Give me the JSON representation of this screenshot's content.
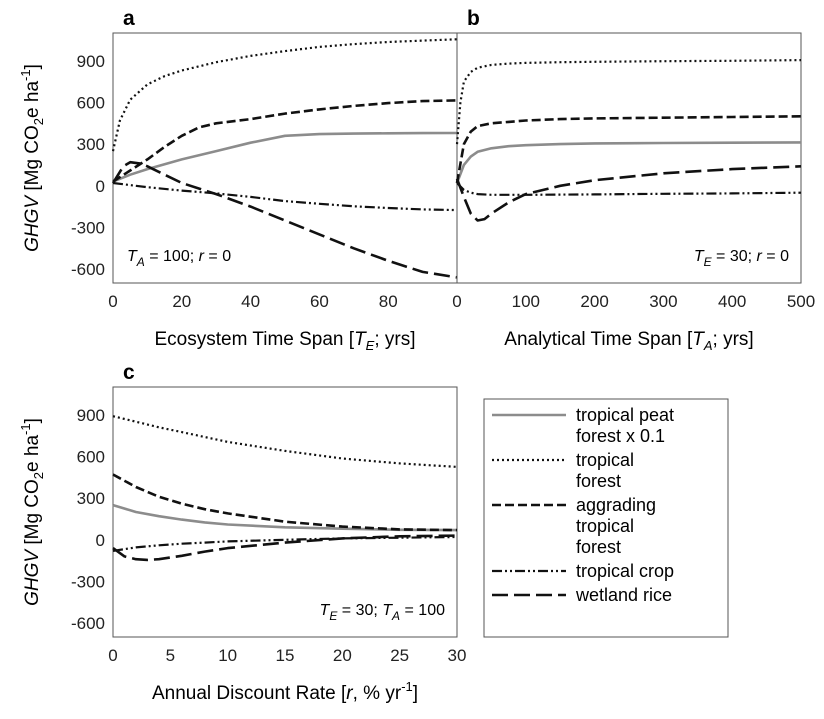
{
  "chart_data": [
    {
      "id": "a",
      "type": "line",
      "panel_label": "a",
      "xlabel": {
        "before": "Ecosystem Time Span [",
        "sym": "T",
        "sub": "E",
        "after": "; yrs]"
      },
      "ylabel": {
        "sym": "GHGV",
        "pre": " [Mg CO",
        "sub": "2",
        "post": "e ha",
        "sup": "-1",
        "end": "]"
      },
      "xlim": [
        0,
        100
      ],
      "ylim": [
        -700,
        1100
      ],
      "xticks": [
        0,
        20,
        40,
        60,
        80
      ],
      "yticks": [
        -600,
        -300,
        0,
        300,
        600,
        900
      ],
      "annotation": {
        "t1": "T",
        "s1": "A",
        "m1": " = 100; ",
        "t2": "r",
        "m2": " = 0"
      },
      "annotation_pos": "bottom-left",
      "series": [
        {
          "key": "peat",
          "x": [
            0,
            5,
            10,
            20,
            30,
            40,
            50,
            60,
            70,
            80,
            90,
            100
          ],
          "y": [
            30,
            80,
            120,
            190,
            250,
            310,
            360,
            372,
            376,
            378,
            379,
            380
          ]
        },
        {
          "key": "forest",
          "x": [
            0,
            2,
            5,
            10,
            15,
            20,
            30,
            40,
            50,
            60,
            70,
            80,
            90,
            100
          ],
          "y": [
            250,
            470,
            620,
            730,
            790,
            830,
            890,
            935,
            970,
            1000,
            1020,
            1035,
            1045,
            1055
          ]
        },
        {
          "key": "aggrading",
          "x": [
            0,
            5,
            10,
            15,
            20,
            25,
            30,
            40,
            50,
            60,
            70,
            80,
            90,
            100
          ],
          "y": [
            30,
            110,
            190,
            280,
            360,
            420,
            450,
            480,
            520,
            550,
            575,
            595,
            610,
            615
          ]
        },
        {
          "key": "crop",
          "x": [
            0,
            10,
            20,
            30,
            40,
            50,
            60,
            70,
            80,
            90,
            100
          ],
          "y": [
            20,
            -10,
            -35,
            -55,
            -80,
            -110,
            -130,
            -148,
            -160,
            -170,
            -175
          ]
        },
        {
          "key": "rice",
          "x": [
            0,
            3,
            5,
            8,
            10,
            15,
            20,
            30,
            40,
            50,
            60,
            70,
            80,
            90,
            100
          ],
          "y": [
            20,
            140,
            170,
            160,
            140,
            80,
            20,
            -60,
            -150,
            -250,
            -350,
            -450,
            -540,
            -620,
            -660
          ]
        }
      ]
    },
    {
      "id": "b",
      "type": "line",
      "panel_label": "b",
      "xlabel": {
        "before": "Analytical Time Span [",
        "sym": "T",
        "sub": "A",
        "after": "; yrs]"
      },
      "ylabel": null,
      "xlim": [
        0,
        500
      ],
      "ylim": [
        -700,
        1100
      ],
      "xticks": [
        0,
        100,
        200,
        300,
        400,
        500
      ],
      "yticks": [],
      "annotation": {
        "t1": "T",
        "s1": "E",
        "m1": " = 30; ",
        "t2": "r",
        "m2": " = 0"
      },
      "annotation_pos": "bottom-right",
      "series": [
        {
          "key": "peat",
          "x": [
            0,
            10,
            20,
            30,
            50,
            75,
            100,
            150,
            200,
            300,
            400,
            500
          ],
          "y": [
            20,
            150,
            210,
            245,
            270,
            285,
            292,
            300,
            305,
            308,
            310,
            312
          ]
        },
        {
          "key": "forest",
          "x": [
            0,
            5,
            10,
            20,
            30,
            50,
            75,
            100,
            150,
            200,
            300,
            400,
            500
          ],
          "y": [
            300,
            600,
            750,
            820,
            850,
            870,
            880,
            885,
            890,
            893,
            897,
            900,
            905
          ]
        },
        {
          "key": "aggrading",
          "x": [
            0,
            10,
            20,
            30,
            50,
            75,
            100,
            150,
            200,
            300,
            400,
            500
          ],
          "y": [
            20,
            300,
            390,
            430,
            450,
            460,
            470,
            480,
            485,
            490,
            495,
            500
          ]
        },
        {
          "key": "crop",
          "x": [
            0,
            10,
            20,
            30,
            50,
            100,
            200,
            300,
            400,
            500
          ],
          "y": [
            20,
            -30,
            -50,
            -60,
            -65,
            -65,
            -62,
            -58,
            -55,
            -50
          ]
        },
        {
          "key": "rice",
          "x": [
            0,
            10,
            20,
            30,
            40,
            50,
            75,
            100,
            150,
            200,
            300,
            400,
            500
          ],
          "y": [
            50,
            -80,
            -200,
            -250,
            -240,
            -200,
            -120,
            -60,
            0,
            40,
            90,
            120,
            140
          ]
        }
      ]
    },
    {
      "id": "c",
      "type": "line",
      "panel_label": "c",
      "xlabel": {
        "before": "Annual Discount Rate [",
        "sym": "r",
        "sub": "",
        "after": ", % yr",
        "sup": "-1",
        "end": "]"
      },
      "ylabel": {
        "sym": "GHGV",
        "pre": " [Mg CO",
        "sub": "2",
        "post": "e ha",
        "sup": "-1",
        "end": "]"
      },
      "xlim": [
        0,
        30
      ],
      "ylim": [
        -700,
        1100
      ],
      "xticks": [
        0,
        5,
        10,
        15,
        20,
        25,
        30
      ],
      "yticks": [
        -600,
        -300,
        0,
        300,
        600,
        900
      ],
      "annotation": {
        "t1": "T",
        "s1": "E",
        "m1": " = 30; ",
        "t2": "T",
        "s2": "A",
        "m2": " = 100"
      },
      "annotation_pos": "bottom-right",
      "series": [
        {
          "key": "peat",
          "x": [
            0,
            2,
            4,
            6,
            8,
            10,
            15,
            20,
            25,
            30
          ],
          "y": [
            250,
            200,
            170,
            145,
            125,
            110,
            90,
            80,
            72,
            70
          ]
        },
        {
          "key": "forest",
          "x": [
            0,
            2,
            4,
            6,
            8,
            10,
            15,
            20,
            25,
            30
          ],
          "y": [
            890,
            850,
            810,
            775,
            740,
            705,
            640,
            585,
            550,
            525
          ]
        },
        {
          "key": "aggrading",
          "x": [
            0,
            2,
            4,
            6,
            8,
            10,
            15,
            20,
            25,
            30
          ],
          "y": [
            470,
            380,
            310,
            260,
            220,
            190,
            130,
            95,
            75,
            70
          ]
        },
        {
          "key": "crop",
          "x": [
            0,
            2,
            4,
            6,
            8,
            10,
            15,
            20,
            25,
            30
          ],
          "y": [
            -80,
            -55,
            -40,
            -28,
            -20,
            -12,
            0,
            10,
            15,
            20
          ]
        },
        {
          "key": "rice",
          "x": [
            0,
            1,
            2,
            3,
            4,
            6,
            8,
            10,
            15,
            20,
            25,
            30
          ],
          "y": [
            -60,
            -120,
            -140,
            -145,
            -140,
            -115,
            -85,
            -60,
            -20,
            10,
            25,
            30
          ]
        }
      ]
    }
  ],
  "legend": {
    "placement": "right-of-panel-c",
    "entries": [
      {
        "key": "peat",
        "lines": [
          "tropical peat",
          "forest x 0.1"
        ]
      },
      {
        "key": "forest",
        "lines": [
          "tropical",
          "forest"
        ]
      },
      {
        "key": "aggrading",
        "lines": [
          "aggrading",
          "tropical",
          "forest"
        ]
      },
      {
        "key": "crop",
        "lines": [
          "tropical crop"
        ]
      },
      {
        "key": "rice",
        "lines": [
          "wetland rice"
        ]
      }
    ]
  },
  "styles": {
    "peat": {
      "color": "#8c8c8c",
      "dash": "",
      "width": 2.6
    },
    "forest": {
      "color": "#111111",
      "dash": "2,3",
      "width": 2.2
    },
    "aggrading": {
      "color": "#111111",
      "dash": "9,4",
      "width": 2.6
    },
    "crop": {
      "color": "#111111",
      "dash": "10,3,2,3,2,3",
      "width": 2.2
    },
    "rice": {
      "color": "#111111",
      "dash": "16,6",
      "width": 2.6
    }
  }
}
